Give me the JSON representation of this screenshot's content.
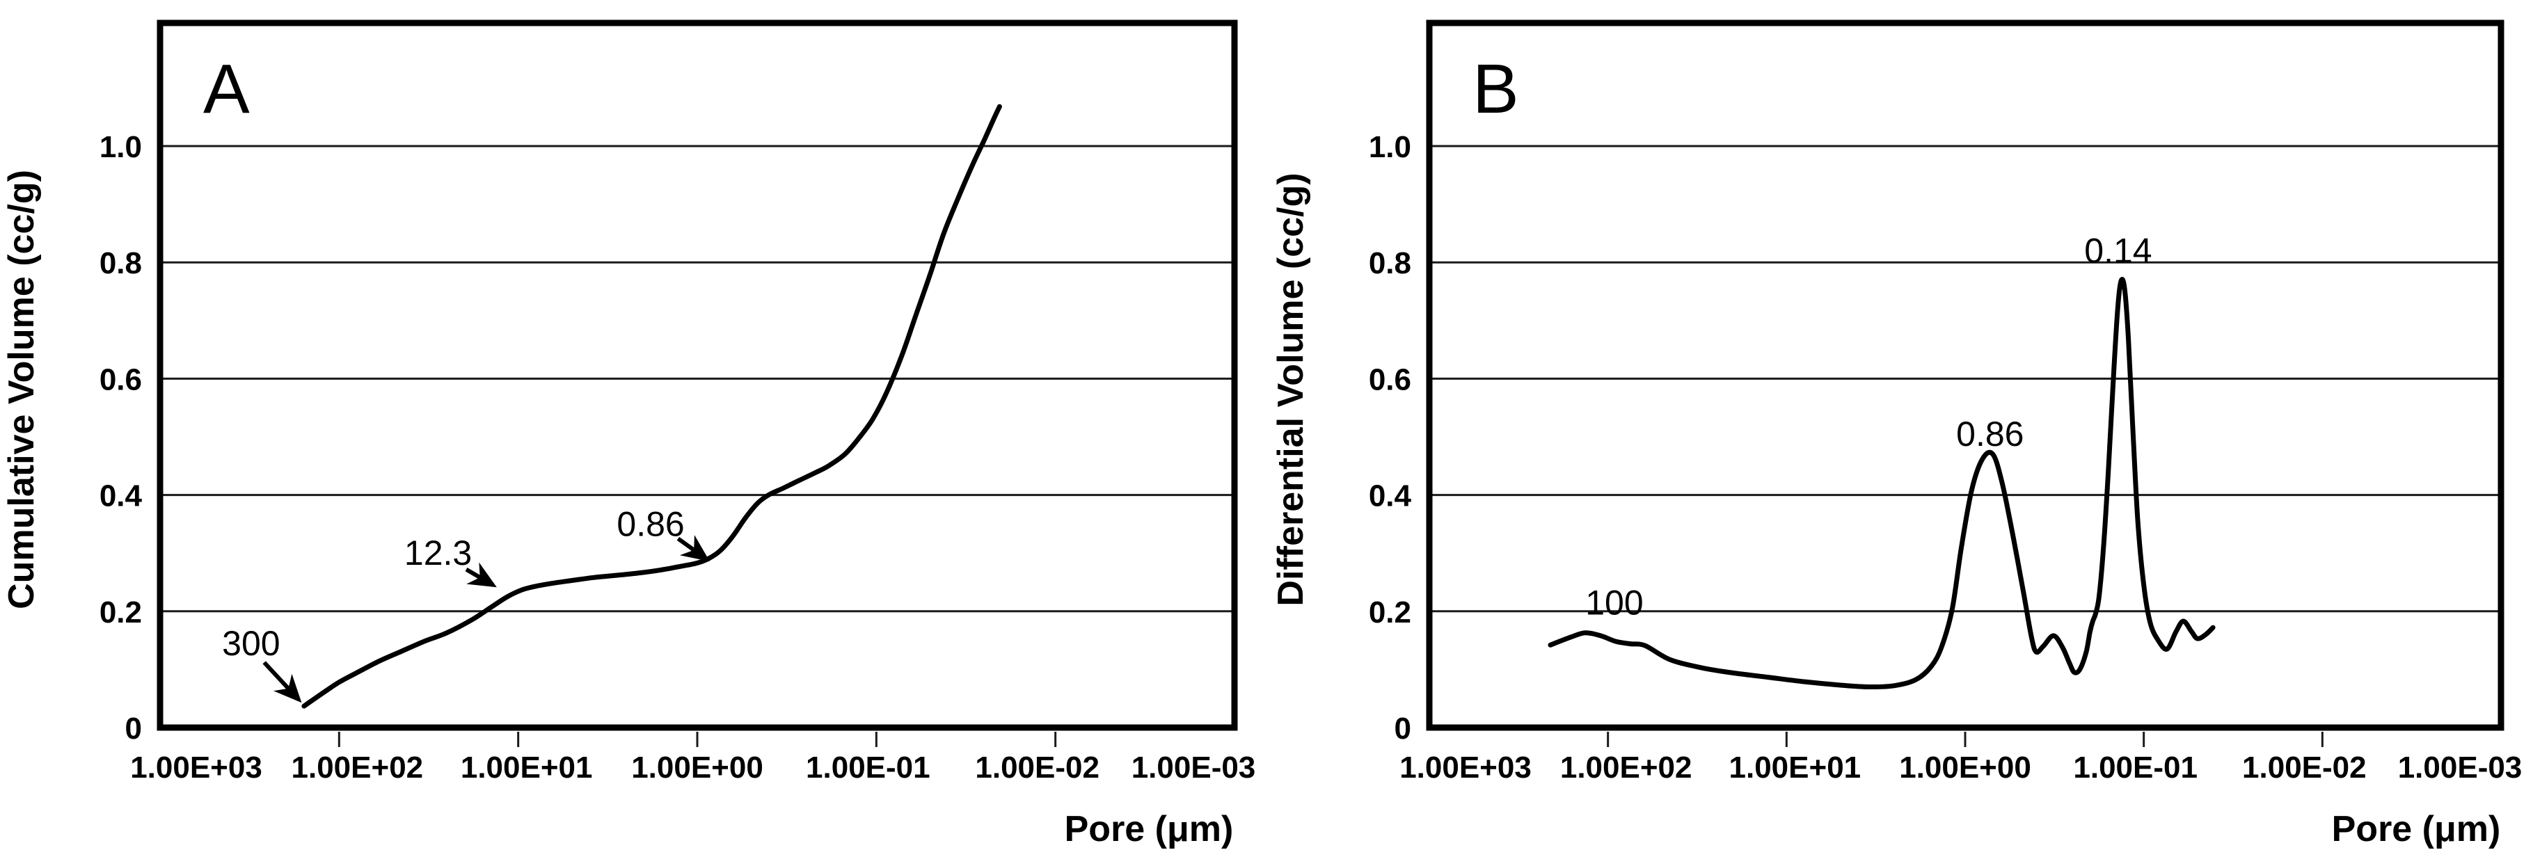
{
  "figure": {
    "background_color": "#ffffff",
    "ink_color": "#000000",
    "description": "Two-panel pore size distribution figure"
  },
  "chart_data": [
    {
      "type": "line",
      "panel_label": "A",
      "xlabel": "Pore (μm)",
      "ylabel": "Cumulative Volume (cc/g)",
      "x_scale": "log",
      "x_reversed": true,
      "xlim": [
        1000,
        0.001
      ],
      "ylim": [
        0,
        1.21
      ],
      "grid": "horizontal",
      "legend": "none",
      "x_tick_values": [
        1000,
        100,
        10,
        1,
        0.1,
        0.01,
        0.001
      ],
      "x_tick_labels": [
        "1.00E+03",
        "1.00E+02",
        "1.00E+01",
        "1.00E+00",
        "1.00E-01",
        "1.00E-02",
        "1.00E-03"
      ],
      "y_tick_values": [
        1.0,
        0.8,
        0.6,
        0.4,
        0.2,
        0
      ],
      "y_tick_labels": [
        "1.0",
        "0.8",
        "0.6",
        "0.4",
        "0.2",
        "0"
      ],
      "series": [
        {
          "name": "cumulative-volume",
          "points": [
            [
              157,
              0.037
            ],
            [
              120,
              0.062
            ],
            [
              100,
              0.078
            ],
            [
              80,
              0.094
            ],
            [
              60,
              0.114
            ],
            [
              45,
              0.131
            ],
            [
              33,
              0.149
            ],
            [
              25,
              0.163
            ],
            [
              18,
              0.186
            ],
            [
              14,
              0.208
            ],
            [
              11.5,
              0.225
            ],
            [
              9.5,
              0.237
            ],
            [
              8,
              0.243
            ],
            [
              6.5,
              0.248
            ],
            [
              5,
              0.253
            ],
            [
              3.8,
              0.258
            ],
            [
              2.8,
              0.262
            ],
            [
              2.1,
              0.266
            ],
            [
              1.6,
              0.271
            ],
            [
              1.25,
              0.277
            ],
            [
              1.0,
              0.283
            ],
            [
              0.86,
              0.291
            ],
            [
              0.74,
              0.305
            ],
            [
              0.63,
              0.33
            ],
            [
              0.54,
              0.36
            ],
            [
              0.46,
              0.386
            ],
            [
              0.4,
              0.4
            ],
            [
              0.33,
              0.412
            ],
            [
              0.27,
              0.425
            ],
            [
              0.22,
              0.438
            ],
            [
              0.185,
              0.45
            ],
            [
              0.15,
              0.47
            ],
            [
              0.125,
              0.498
            ],
            [
              0.105,
              0.53
            ],
            [
              0.088,
              0.575
            ],
            [
              0.072,
              0.64
            ],
            [
              0.06,
              0.71
            ],
            [
              0.05,
              0.78
            ],
            [
              0.042,
              0.85
            ],
            [
              0.035,
              0.91
            ],
            [
              0.029,
              0.968
            ],
            [
              0.025,
              1.01
            ],
            [
              0.022,
              1.048
            ],
            [
              0.0205,
              1.068
            ]
          ]
        }
      ],
      "annotations": [
        {
          "text": "300",
          "x": 310,
          "y": 0.145,
          "arrow_from": [
            262,
            0.112
          ],
          "arrow_to": [
            168,
            0.048
          ]
        },
        {
          "text": "12.3",
          "x": 28,
          "y": 0.3,
          "arrow_from": [
            19.5,
            0.272
          ],
          "arrow_to": [
            13.8,
            0.245
          ]
        },
        {
          "text": "0.86",
          "x": 1.82,
          "y": 0.35,
          "arrow_from": [
            1.28,
            0.325
          ],
          "arrow_to": [
            0.89,
            0.29
          ]
        }
      ]
    },
    {
      "type": "line",
      "panel_label": "B",
      "xlabel": "Pore (μm)",
      "ylabel": "Differential Volume (cc/g)",
      "x_scale": "log",
      "x_reversed": true,
      "xlim": [
        1000,
        0.001
      ],
      "ylim": [
        0,
        1.21
      ],
      "grid": "horizontal",
      "legend": "none",
      "x_tick_values": [
        1000,
        100,
        10,
        1,
        0.1,
        0.01,
        0.001
      ],
      "x_tick_labels": [
        "1.00E+03",
        "1.00E+02",
        "1.00E+01",
        "1.00E+00",
        "1.00E-01",
        "1.00E-02",
        "1.00E-03"
      ],
      "y_tick_values": [
        1.0,
        0.8,
        0.6,
        0.4,
        0.2,
        0
      ],
      "y_tick_labels": [
        "1.0",
        "0.8",
        "0.6",
        "0.4",
        "0.2",
        "0"
      ],
      "series": [
        {
          "name": "differential-volume",
          "points": [
            [
              210,
              0.142
            ],
            [
              160,
              0.156
            ],
            [
              134,
              0.163
            ],
            [
              110,
              0.158
            ],
            [
              90,
              0.148
            ],
            [
              75,
              0.144
            ],
            [
              62,
              0.141
            ],
            [
              45,
              0.117
            ],
            [
              30,
              0.103
            ],
            [
              20,
              0.094
            ],
            [
              13,
              0.087
            ],
            [
              8,
              0.079
            ],
            [
              5,
              0.073
            ],
            [
              3.5,
              0.07
            ],
            [
              2.5,
              0.072
            ],
            [
              1.9,
              0.082
            ],
            [
              1.55,
              0.105
            ],
            [
              1.35,
              0.14
            ],
            [
              1.18,
              0.205
            ],
            [
              1.05,
              0.31
            ],
            [
              0.92,
              0.408
            ],
            [
              0.8,
              0.462
            ],
            [
              0.7,
              0.47
            ],
            [
              0.62,
              0.42
            ],
            [
              0.54,
              0.33
            ],
            [
              0.47,
              0.23
            ],
            [
              0.425,
              0.155
            ],
            [
              0.4,
              0.13
            ],
            [
              0.365,
              0.14
            ],
            [
              0.32,
              0.158
            ],
            [
              0.285,
              0.138
            ],
            [
              0.26,
              0.11
            ],
            [
              0.245,
              0.095
            ],
            [
              0.228,
              0.1
            ],
            [
              0.21,
              0.13
            ],
            [
              0.2,
              0.165
            ],
            [
              0.193,
              0.183
            ],
            [
              0.186,
              0.196
            ],
            [
              0.178,
              0.225
            ],
            [
              0.168,
              0.31
            ],
            [
              0.158,
              0.44
            ],
            [
              0.148,
              0.6
            ],
            [
              0.14,
              0.72
            ],
            [
              0.134,
              0.768
            ],
            [
              0.128,
              0.755
            ],
            [
              0.122,
              0.67
            ],
            [
              0.115,
              0.51
            ],
            [
              0.108,
              0.355
            ],
            [
              0.1,
              0.245
            ],
            [
              0.092,
              0.18
            ],
            [
              0.083,
              0.15
            ],
            [
              0.074,
              0.135
            ],
            [
              0.066,
              0.165
            ],
            [
              0.06,
              0.183
            ],
            [
              0.054,
              0.165
            ],
            [
              0.05,
              0.153
            ],
            [
              0.045,
              0.16
            ],
            [
              0.041,
              0.172
            ]
          ]
        }
      ],
      "annotations": [
        {
          "text": "100",
          "x": 92,
          "y": 0.215
        },
        {
          "text": "0.86",
          "x": 0.725,
          "y": 0.505
        },
        {
          "text": "0.14",
          "x": 0.139,
          "y": 0.82
        }
      ]
    }
  ]
}
